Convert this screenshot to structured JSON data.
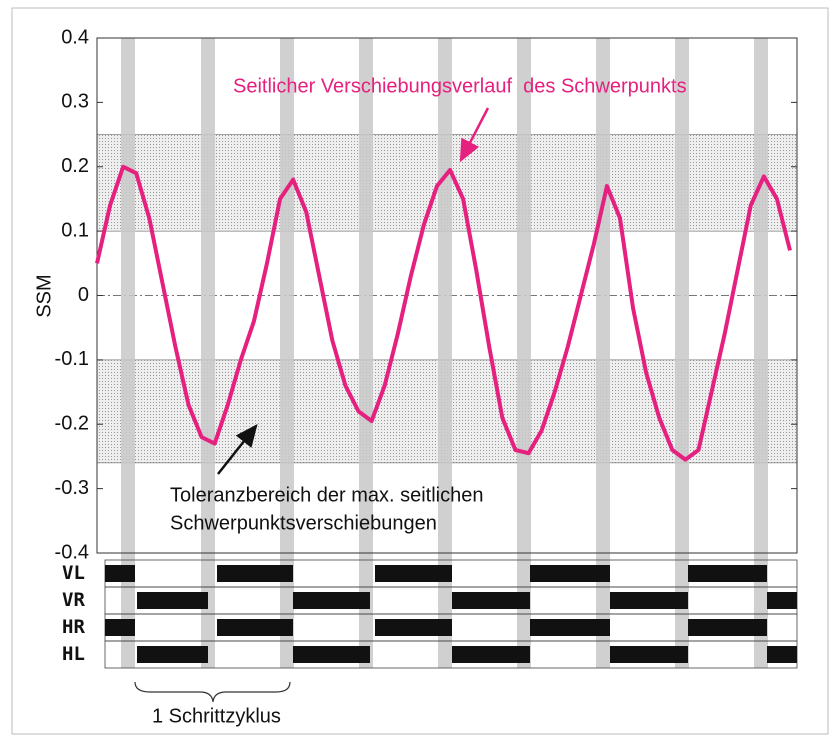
{
  "chart_data": {
    "type": "line",
    "annotation": "Seitlicher Verschiebungsverlauf  des Schwerpunkts",
    "tolerance_label": [
      "Toleranzbereich der max. seitlichen",
      "Schwerpunktsverschiebungen"
    ],
    "cycle_label": "1 Schrittzyklus",
    "y_label": "SSM",
    "gait_rows": [
      "VL",
      "VR",
      "HR",
      "HL"
    ],
    "bands": [
      [
        0.1,
        0.25
      ],
      [
        -0.26,
        -0.1
      ]
    ],
    "zero_line": 0,
    "ylim": [
      -0.4,
      0.4
    ],
    "yticks": [
      -0.4,
      -0.3,
      -0.2,
      -0.1,
      0,
      0.1,
      0.2,
      0.3,
      0.4
    ],
    "color": "#e5207e",
    "values": [
      0.05,
      0.14,
      0.2,
      0.19,
      0.12,
      0.02,
      -0.08,
      -0.17,
      -0.22,
      -0.23,
      -0.17,
      -0.1,
      -0.04,
      0.05,
      0.15,
      0.18,
      0.13,
      0.03,
      -0.07,
      -0.14,
      -0.18,
      -0.195,
      -0.14,
      -0.06,
      0.03,
      0.11,
      0.17,
      0.195,
      0.15,
      0.04,
      -0.08,
      -0.19,
      -0.24,
      -0.245,
      -0.21,
      -0.15,
      -0.08,
      0.0,
      0.08,
      0.17,
      0.12,
      -0.02,
      -0.12,
      -0.19,
      -0.24,
      -0.255,
      -0.24,
      -0.15,
      -0.06,
      0.04,
      0.14,
      0.185,
      0.15,
      0.07
    ]
  }
}
